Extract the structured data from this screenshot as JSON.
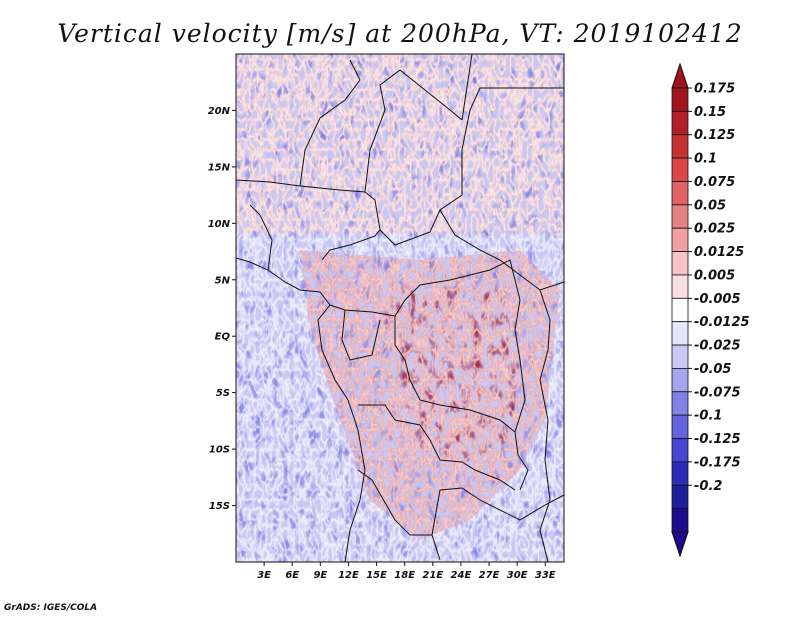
{
  "chart_data": {
    "type": "heatmap",
    "title": "Vertical velocity [m/s] at 200hPa, VT: 2019102412",
    "x_tick_labels": [
      "3E",
      "6E",
      "9E",
      "12E",
      "15E",
      "18E",
      "21E",
      "24E",
      "27E",
      "30E",
      "33E"
    ],
    "x_tick_values": [
      3,
      6,
      9,
      12,
      15,
      18,
      21,
      24,
      27,
      30,
      33
    ],
    "y_tick_labels": [
      "20N",
      "15N",
      "10N",
      "5N",
      "EQ",
      "5S",
      "10S",
      "15S"
    ],
    "y_tick_values": [
      20,
      15,
      10,
      5,
      0,
      -5,
      -10,
      -15
    ],
    "xlim": [
      0,
      35
    ],
    "ylim": [
      -20,
      25
    ],
    "colorbar": {
      "levels": [
        "0.175",
        "0.15",
        "0.125",
        "0.1",
        "0.075",
        "0.05",
        "0.025",
        "0.0125",
        "0.005",
        "-0.005",
        "-0.0125",
        "-0.025",
        "-0.05",
        "-0.075",
        "-0.1",
        "-0.125",
        "-0.175",
        "-0.2"
      ],
      "colors": [
        "#a0141e",
        "#b41e28",
        "#c83232",
        "#dc4646",
        "#e16464",
        "#e68282",
        "#f0a0a0",
        "#f5c3c3",
        "#fae1e1",
        "#ffffff",
        "#e6e6fa",
        "#c8c8f5",
        "#a5a5f0",
        "#8282e6",
        "#6464dc",
        "#4646d2",
        "#2d2db9",
        "#1e1e9b",
        "#1e0a8c"
      ],
      "top_arrow_color": "#a0141e",
      "bottom_arrow_color": "#1e0a8c"
    },
    "legend_position": "right",
    "grid": false
  },
  "credit": "GrADS: IGES/COLA"
}
